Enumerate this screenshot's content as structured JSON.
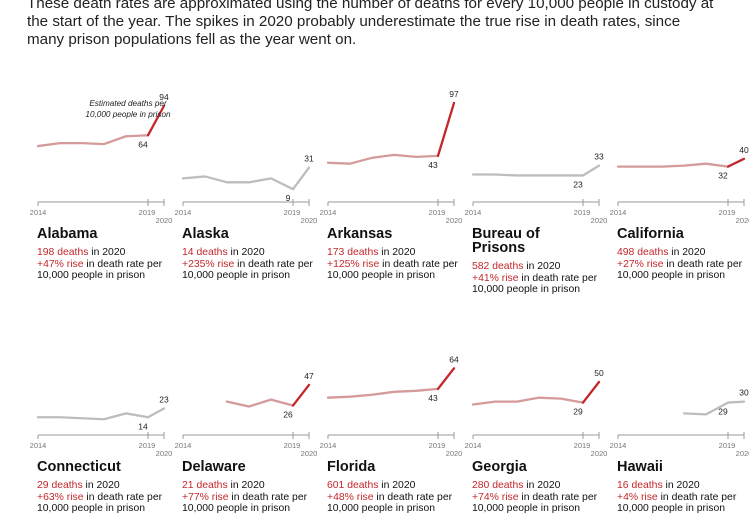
{
  "intro": "These death rates are approximated using the number of deaths for every 10,000 people in custody at the start of the year. The spikes in 2020 probably underestimate the true rise in death rates, since many prison populations fell as the year went on.",
  "colors": {
    "red_line": "#c4272a",
    "pink_line": "#d59a9a",
    "grey_line": "#bdbdbd",
    "axis": "#999999",
    "highlight_text": "#c4272a"
  },
  "annotation": "Estimated deaths per 10,000 people in prison",
  "chart_data": [
    {
      "type": "line",
      "title": "Alabama",
      "x": [
        2014,
        2015,
        2016,
        2017,
        2018,
        2019,
        2020
      ],
      "y": [
        53,
        56,
        56,
        55,
        63,
        64,
        94
      ],
      "deaths_text": "198 deaths",
      "deaths_suffix": " in 2020",
      "rise_text": "+47% rise",
      "rise_suffix": " in death rate per 10,000 people in prison",
      "labels": [
        {
          "year": 2019,
          "text": "64"
        },
        {
          "year": 2020,
          "text": "94"
        }
      ]
    },
    {
      "type": "line",
      "title": "Alaska",
      "x": [
        2014,
        2015,
        2016,
        2017,
        2018,
        2019,
        2020
      ],
      "y": [
        20,
        22,
        16,
        16,
        20,
        9,
        31
      ],
      "deaths_text": "14 deaths",
      "deaths_suffix": " in 2020",
      "rise_text": "+235% rise",
      "rise_suffix": " in death rate per 10,000 people in prison",
      "labels": [
        {
          "year": 2019,
          "text": "9"
        },
        {
          "year": 2020,
          "text": "31"
        }
      ]
    },
    {
      "type": "line",
      "title": "Arkansas",
      "x": [
        2014,
        2015,
        2016,
        2017,
        2018,
        2019,
        2020
      ],
      "y": [
        36,
        35,
        41,
        44,
        42,
        43,
        97
      ],
      "deaths_text": "173 deaths",
      "deaths_suffix": " in 2020",
      "rise_text": "+125% rise",
      "rise_suffix": " in death rate per 10,000 people in prison",
      "labels": [
        {
          "year": 2019,
          "text": "43"
        },
        {
          "year": 2020,
          "text": "97"
        }
      ]
    },
    {
      "type": "line",
      "title": "Bureau of Prisons",
      "x": [
        2014,
        2015,
        2016,
        2017,
        2018,
        2019,
        2020
      ],
      "y": [
        24,
        24,
        23,
        23,
        23,
        23,
        33
      ],
      "deaths_text": "582 deaths",
      "deaths_suffix": " in 2020",
      "rise_text": "+41% rise",
      "rise_suffix": " in death rate per 10,000 people in prison",
      "labels": [
        {
          "year": 2019,
          "text": "23"
        },
        {
          "year": 2020,
          "text": "33"
        }
      ]
    },
    {
      "type": "line",
      "title": "California",
      "x": [
        2014,
        2015,
        2016,
        2017,
        2018,
        2019,
        2020
      ],
      "y": [
        32,
        32,
        32,
        33,
        35,
        32,
        40
      ],
      "deaths_text": "498 deaths",
      "deaths_suffix": " in 2020",
      "rise_text": "+27% rise",
      "rise_suffix": " in death rate per 10,000 people in prison",
      "labels": [
        {
          "year": 2019,
          "text": "32"
        },
        {
          "year": 2020,
          "text": "40"
        }
      ]
    },
    {
      "type": "line",
      "title": "Connecticut",
      "x": [
        2014,
        2015,
        2016,
        2017,
        2018,
        2019,
        2020
      ],
      "y": [
        14,
        14,
        13,
        12,
        18,
        14,
        23
      ],
      "deaths_text": "29 deaths",
      "deaths_suffix": " in 2020",
      "rise_text": "+63% rise",
      "rise_suffix": " in death rate per 10,000 people in prison",
      "labels": [
        {
          "year": 2019,
          "text": "14"
        },
        {
          "year": 2020,
          "text": "23"
        }
      ]
    },
    {
      "type": "line",
      "title": "Delaware",
      "x": [
        2016,
        2017,
        2018,
        2019,
        2020
      ],
      "y": [
        30,
        25,
        32,
        26,
        47
      ],
      "deaths_text": "21 deaths",
      "deaths_suffix": " in 2020",
      "rise_text": "+77% rise",
      "rise_suffix": " in death rate per 10,000 people in prison",
      "labels": [
        {
          "year": 2019,
          "text": "26"
        },
        {
          "year": 2020,
          "text": "47"
        }
      ]
    },
    {
      "type": "line",
      "title": "Florida",
      "x": [
        2014,
        2015,
        2016,
        2017,
        2018,
        2019,
        2020
      ],
      "y": [
        34,
        35,
        37,
        40,
        41,
        43,
        64
      ],
      "deaths_text": "601 deaths",
      "deaths_suffix": " in 2020",
      "rise_text": "+48% rise",
      "rise_suffix": " in death rate per 10,000 people in prison",
      "labels": [
        {
          "year": 2019,
          "text": "43"
        },
        {
          "year": 2020,
          "text": "64"
        }
      ]
    },
    {
      "type": "line",
      "title": "Georgia",
      "x": [
        2014,
        2015,
        2016,
        2017,
        2018,
        2019,
        2020
      ],
      "y": [
        27,
        30,
        30,
        34,
        33,
        29,
        50
      ],
      "deaths_text": "280 deaths",
      "deaths_suffix": " in 2020",
      "rise_text": "+74% rise",
      "rise_suffix": " in death rate per 10,000 people in prison",
      "labels": [
        {
          "year": 2019,
          "text": "29"
        },
        {
          "year": 2020,
          "text": "50"
        }
      ]
    },
    {
      "type": "line",
      "title": "Hawaii",
      "x": [
        2017,
        2018,
        2019,
        2020
      ],
      "y": [
        18,
        17,
        29,
        30
      ],
      "deaths_text": "16 deaths",
      "deaths_suffix": " in 2020",
      "rise_text": "+4% rise",
      "rise_suffix": " in death rate per 10,000 people in prison",
      "labels": [
        {
          "year": 2019,
          "text": "29"
        },
        {
          "year": 2020,
          "text": "30"
        }
      ]
    }
  ],
  "axis": {
    "start_label": "2014",
    "y2019_label": "2019",
    "y2020_label": "2020"
  }
}
